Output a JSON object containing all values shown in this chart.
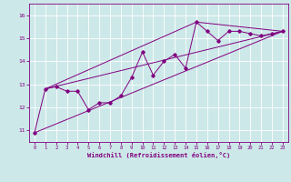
{
  "title": "",
  "xlabel": "Windchill (Refroidissement éolien,°C)",
  "bg_color": "#cde8e8",
  "line_color": "#800080",
  "grid_color": "#ffffff",
  "xlim": [
    -0.5,
    23.5
  ],
  "ylim": [
    10.5,
    16.5
  ],
  "yticks": [
    11,
    12,
    13,
    14,
    15,
    16
  ],
  "xticks": [
    0,
    1,
    2,
    3,
    4,
    5,
    6,
    7,
    8,
    9,
    10,
    11,
    12,
    13,
    14,
    15,
    16,
    17,
    18,
    19,
    20,
    21,
    22,
    23
  ],
  "main_x": [
    0,
    1,
    2,
    3,
    4,
    5,
    6,
    7,
    8,
    9,
    10,
    11,
    12,
    13,
    14,
    15,
    16,
    17,
    18,
    19,
    20,
    21,
    22,
    23
  ],
  "main_y": [
    10.9,
    12.8,
    12.9,
    12.7,
    12.7,
    11.9,
    12.2,
    12.2,
    12.5,
    13.3,
    14.4,
    13.4,
    14.0,
    14.3,
    13.7,
    15.7,
    15.3,
    14.9,
    15.3,
    15.3,
    15.2,
    15.1,
    15.2,
    15.3
  ],
  "line1_x": [
    0,
    23
  ],
  "line1_y": [
    10.9,
    15.3
  ],
  "line2_x": [
    1,
    23
  ],
  "line2_y": [
    12.8,
    15.3
  ],
  "line3_x": [
    1,
    15,
    23
  ],
  "line3_y": [
    12.8,
    15.7,
    15.3
  ]
}
